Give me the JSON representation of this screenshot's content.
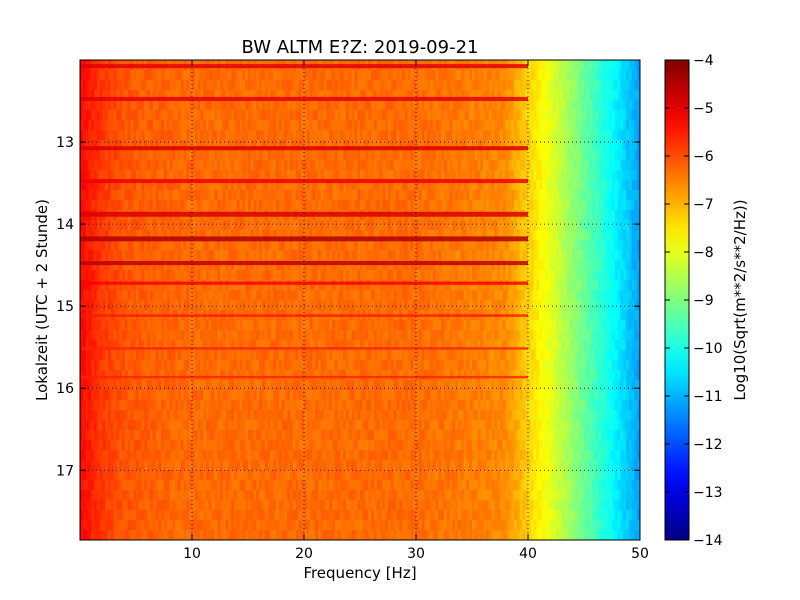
{
  "chart_data": {
    "type": "heatmap",
    "title": "BW ALTM E?Z: 2019-09-21",
    "xlabel": "Frequency [Hz]",
    "ylabel": "Lokalzeit (UTC + 2 Stunde)",
    "xlim": [
      0,
      50
    ],
    "ylim": [
      17.85,
      12.0
    ],
    "x_ticks": [
      10,
      20,
      30,
      40,
      50
    ],
    "x_tick_labels": [
      "10",
      "20",
      "30",
      "40",
      "50"
    ],
    "y_ticks": [
      13,
      14,
      15,
      16,
      17
    ],
    "y_tick_labels": [
      "13",
      "14",
      "15",
      "16",
      "17"
    ],
    "grid": true,
    "colormap": "jet",
    "colorbar": {
      "label": "Log10(Sqrt(m**2/s**2/Hz))",
      "range": [
        -14,
        -4
      ],
      "ticks": [
        -4,
        -5,
        -6,
        -7,
        -8,
        -9,
        -10,
        -11,
        -12,
        -13,
        -14
      ],
      "tick_labels": [
        "−4",
        "−5",
        "−6",
        "−7",
        "−8",
        "−9",
        "−10",
        "−11",
        "−12",
        "−13",
        "−14"
      ]
    },
    "frequency_profile": {
      "x": [
        0,
        2,
        4,
        10,
        20,
        30,
        38,
        40,
        42,
        44,
        46,
        48,
        50
      ],
      "values": [
        -5.3,
        -5.8,
        -6.1,
        -6.3,
        -6.3,
        -6.3,
        -6.6,
        -7.3,
        -8.0,
        -8.8,
        -9.6,
        -10.4,
        -11.2
      ]
    },
    "bands": [
      {
        "t": 12.05,
        "dt": 0.05,
        "level": -5.0
      },
      {
        "t": 12.45,
        "dt": 0.05,
        "level": -5.0
      },
      {
        "t": 13.05,
        "dt": 0.05,
        "level": -4.9
      },
      {
        "t": 13.45,
        "dt": 0.05,
        "level": -5.1
      },
      {
        "t": 13.85,
        "dt": 0.06,
        "level": -4.9
      },
      {
        "t": 14.15,
        "dt": 0.06,
        "level": -4.5
      },
      {
        "t": 14.45,
        "dt": 0.05,
        "level": -4.6
      },
      {
        "t": 14.7,
        "dt": 0.04,
        "level": -5.2
      },
      {
        "t": 15.1,
        "dt": 0.03,
        "level": -5.5
      },
      {
        "t": 15.5,
        "dt": 0.03,
        "level": -5.6
      },
      {
        "t": 15.85,
        "dt": 0.03,
        "level": -5.6
      }
    ]
  }
}
